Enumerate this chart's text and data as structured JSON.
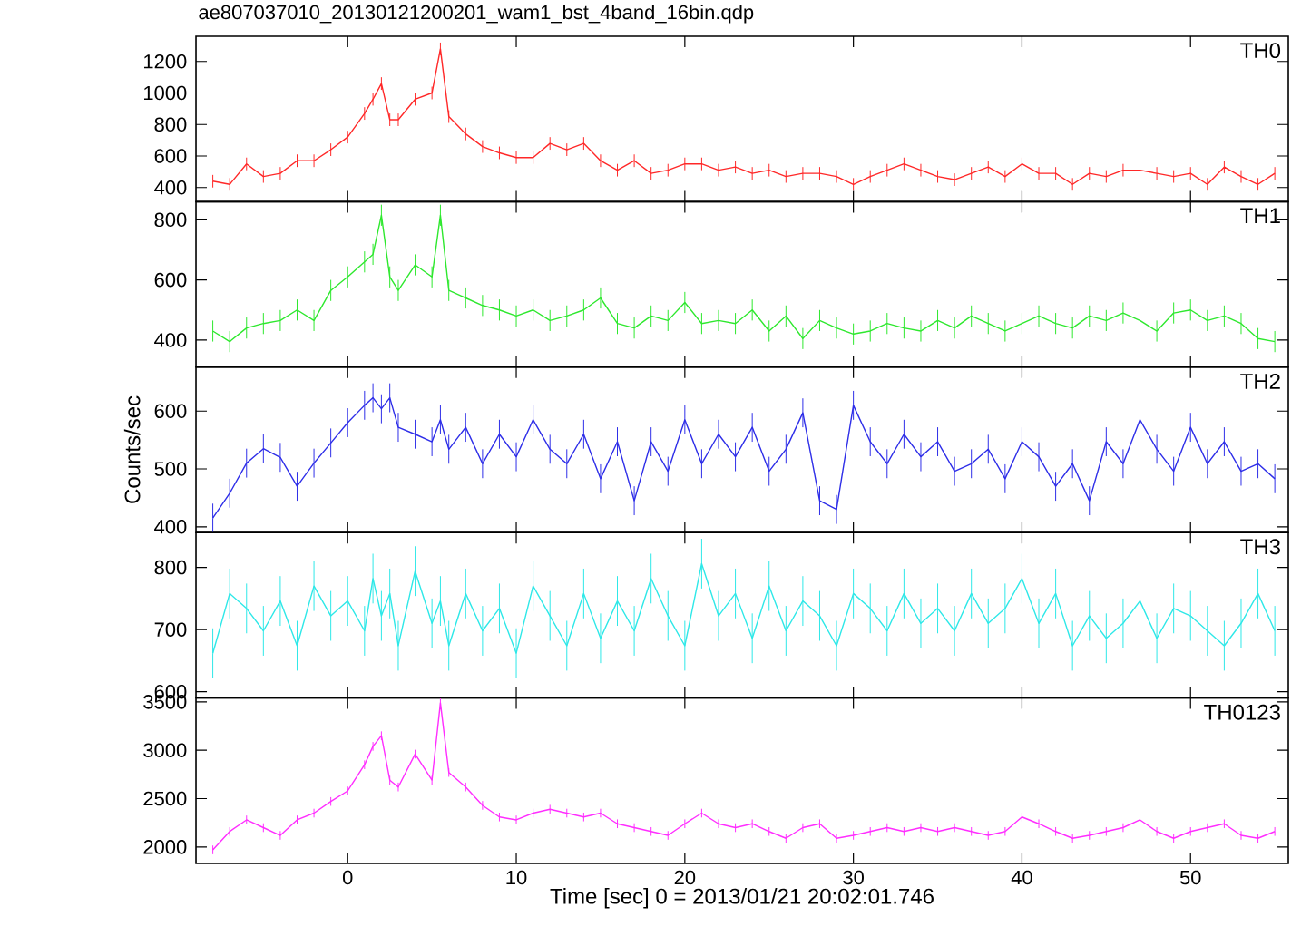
{
  "chart_data": [
    {
      "type": "line",
      "title": "ae807037010_20130121200201_wam1_bst_4band_16bin.qdp",
      "x": [
        -8,
        -7,
        -6,
        -5,
        -4,
        -3,
        -2,
        -1,
        0,
        1,
        1.5,
        2,
        2.5,
        3,
        4,
        5,
        5.5,
        6,
        7,
        8,
        9,
        10,
        11,
        12,
        13,
        14,
        15,
        16,
        17,
        18,
        19,
        20,
        21,
        22,
        23,
        24,
        25,
        26,
        27,
        28,
        29,
        30,
        31,
        32,
        33,
        34,
        35,
        36,
        37,
        38,
        39,
        40,
        41,
        42,
        43,
        44,
        45,
        46,
        47,
        48,
        49,
        50,
        51,
        52,
        53,
        54,
        55
      ],
      "xlim": [
        -9,
        55.8
      ],
      "xticks": [
        0,
        10,
        20,
        30,
        40,
        50
      ],
      "ylim": [
        310,
        1360
      ],
      "yticks": [
        400,
        600,
        800,
        1000,
        1200
      ],
      "tick_labels": "y",
      "series": [
        {
          "name": "TH0",
          "color": "#ff2828",
          "values": [
            440,
            420,
            550,
            470,
            490,
            570,
            570,
            640,
            720,
            870,
            960,
            1060,
            830,
            830,
            960,
            1000,
            1280,
            850,
            740,
            660,
            620,
            590,
            590,
            680,
            640,
            680,
            570,
            510,
            570,
            490,
            510,
            550,
            550,
            510,
            530,
            490,
            510,
            470,
            490,
            490,
            470,
            420,
            470,
            510,
            550,
            510,
            470,
            450,
            490,
            530,
            470,
            550,
            490,
            490,
            420,
            490,
            470,
            510,
            510,
            490,
            470,
            490,
            420,
            530,
            470,
            420,
            490
          ],
          "errors": [
            40,
            40,
            40,
            40,
            40,
            40,
            40,
            40,
            40,
            40,
            40,
            40,
            40,
            40,
            40,
            40,
            40,
            40,
            40,
            40,
            40,
            40,
            40,
            40,
            40,
            40,
            40,
            40,
            40,
            40,
            40,
            40,
            40,
            40,
            40,
            40,
            40,
            40,
            40,
            40,
            40,
            40,
            40,
            40,
            40,
            40,
            40,
            40,
            40,
            40,
            40,
            40,
            40,
            40,
            40,
            40,
            40,
            40,
            40,
            40,
            40,
            40,
            40,
            40,
            40,
            40,
            40
          ]
        }
      ]
    },
    {
      "type": "line",
      "x": [
        -8,
        -7,
        -6,
        -5,
        -4,
        -3,
        -2,
        -1,
        0,
        1,
        1.5,
        2,
        2.5,
        3,
        4,
        5,
        5.5,
        6,
        7,
        8,
        9,
        10,
        11,
        12,
        13,
        14,
        15,
        16,
        17,
        18,
        19,
        20,
        21,
        22,
        23,
        24,
        25,
        26,
        27,
        28,
        29,
        30,
        31,
        32,
        33,
        34,
        35,
        36,
        37,
        38,
        39,
        40,
        41,
        42,
        43,
        44,
        45,
        46,
        47,
        48,
        49,
        50,
        51,
        52,
        53,
        54,
        55
      ],
      "xlim": [
        -9,
        55.8
      ],
      "xticks": [
        0,
        10,
        20,
        30,
        40,
        50
      ],
      "ylim": [
        310,
        860
      ],
      "yticks": [
        400,
        600,
        800
      ],
      "tick_labels": "y",
      "series": [
        {
          "name": "TH1",
          "color": "#2ee82e",
          "values": [
            430,
            395,
            440,
            455,
            465,
            500,
            465,
            565,
            610,
            660,
            685,
            815,
            610,
            565,
            650,
            610,
            815,
            565,
            540,
            515,
            500,
            480,
            500,
            465,
            480,
            500,
            540,
            455,
            440,
            480,
            465,
            525,
            455,
            465,
            455,
            500,
            430,
            480,
            405,
            465,
            440,
            420,
            430,
            455,
            440,
            430,
            465,
            440,
            480,
            455,
            430,
            455,
            480,
            455,
            440,
            480,
            465,
            490,
            465,
            430,
            490,
            500,
            465,
            480,
            455,
            405,
            395
          ],
          "errors": [
            35,
            35,
            35,
            35,
            35,
            35,
            35,
            35,
            35,
            35,
            35,
            35,
            35,
            35,
            35,
            35,
            35,
            35,
            35,
            35,
            35,
            35,
            35,
            35,
            35,
            35,
            35,
            35,
            35,
            35,
            35,
            35,
            35,
            35,
            35,
            35,
            35,
            35,
            35,
            35,
            35,
            35,
            35,
            35,
            35,
            35,
            35,
            35,
            35,
            35,
            35,
            35,
            35,
            35,
            35,
            35,
            35,
            35,
            35,
            35,
            35,
            35,
            35,
            35,
            35,
            35,
            35
          ]
        }
      ]
    },
    {
      "type": "line",
      "ylabel": "Counts/sec",
      "x": [
        -8,
        -7,
        -6,
        -5,
        -4,
        -3,
        -2,
        -1,
        0,
        1,
        1.5,
        2,
        2.5,
        3,
        4,
        5,
        5.5,
        6,
        7,
        8,
        9,
        10,
        11,
        12,
        13,
        14,
        15,
        16,
        17,
        18,
        19,
        20,
        21,
        22,
        23,
        24,
        25,
        26,
        27,
        28,
        29,
        30,
        31,
        32,
        33,
        34,
        35,
        36,
        37,
        38,
        39,
        40,
        41,
        42,
        43,
        44,
        45,
        46,
        47,
        48,
        49,
        50,
        51,
        52,
        53,
        54,
        55
      ],
      "xlim": [
        -9,
        55.8
      ],
      "xticks": [
        0,
        10,
        20,
        30,
        40,
        50
      ],
      "ylim": [
        390,
        676
      ],
      "yticks": [
        400,
        500,
        600
      ],
      "tick_labels": "y",
      "series": [
        {
          "name": "TH2",
          "color": "#2e2ee8",
          "values": [
            415,
            458,
            510,
            535,
            520,
            470,
            510,
            545,
            580,
            610,
            623,
            604,
            623,
            572,
            560,
            547,
            585,
            534,
            572,
            509,
            560,
            521,
            585,
            534,
            509,
            560,
            483,
            547,
            445,
            547,
            496,
            585,
            509,
            560,
            521,
            572,
            496,
            534,
            597,
            445,
            430,
            610,
            547,
            509,
            560,
            521,
            547,
            496,
            509,
            534,
            483,
            547,
            521,
            470,
            509,
            445,
            547,
            509,
            585,
            534,
            496,
            572,
            509,
            547,
            496,
            509,
            483
          ],
          "errors": [
            25,
            25,
            25,
            25,
            25,
            25,
            25,
            25,
            25,
            25,
            25,
            25,
            25,
            25,
            25,
            25,
            25,
            25,
            25,
            25,
            25,
            25,
            25,
            25,
            25,
            25,
            25,
            25,
            25,
            25,
            25,
            25,
            25,
            25,
            25,
            25,
            25,
            25,
            25,
            25,
            25,
            25,
            25,
            25,
            25,
            25,
            25,
            25,
            25,
            25,
            25,
            25,
            25,
            25,
            25,
            25,
            25,
            25,
            25,
            25,
            25,
            25,
            25,
            25,
            25,
            25,
            25
          ]
        }
      ]
    },
    {
      "type": "line",
      "x": [
        -8,
        -7,
        -6,
        -5,
        -4,
        -3,
        -2,
        -1,
        0,
        1,
        1.5,
        2,
        2.5,
        3,
        4,
        5,
        5.5,
        6,
        7,
        8,
        9,
        10,
        11,
        12,
        13,
        14,
        15,
        16,
        17,
        18,
        19,
        20,
        21,
        22,
        23,
        24,
        25,
        26,
        27,
        28,
        29,
        30,
        31,
        32,
        33,
        34,
        35,
        36,
        37,
        38,
        39,
        40,
        41,
        42,
        43,
        44,
        45,
        46,
        47,
        48,
        49,
        50,
        51,
        52,
        53,
        54,
        55
      ],
      "xlim": [
        -9,
        55.8
      ],
      "xticks": [
        0,
        10,
        20,
        30,
        40,
        50
      ],
      "ylim": [
        590,
        856
      ],
      "yticks": [
        600,
        700,
        800
      ],
      "tick_labels": "y",
      "series": [
        {
          "name": "TH3",
          "color": "#2ee8e8",
          "values": [
            662,
            758,
            734,
            698,
            746,
            674,
            770,
            722,
            746,
            698,
            782,
            722,
            758,
            674,
            794,
            710,
            746,
            674,
            758,
            698,
            734,
            662,
            770,
            722,
            674,
            758,
            686,
            746,
            698,
            782,
            722,
            674,
            806,
            722,
            758,
            686,
            770,
            698,
            746,
            722,
            674,
            758,
            734,
            698,
            758,
            710,
            734,
            698,
            758,
            710,
            734,
            782,
            710,
            758,
            674,
            722,
            686,
            710,
            746,
            686,
            734,
            722,
            698,
            674,
            710,
            758,
            698
          ],
          "errors": [
            40,
            40,
            40,
            40,
            40,
            40,
            40,
            40,
            40,
            40,
            40,
            40,
            40,
            40,
            40,
            40,
            40,
            40,
            40,
            40,
            40,
            40,
            40,
            40,
            40,
            40,
            40,
            40,
            40,
            40,
            40,
            40,
            40,
            40,
            40,
            40,
            40,
            40,
            40,
            40,
            40,
            40,
            40,
            40,
            40,
            40,
            40,
            40,
            40,
            40,
            40,
            40,
            40,
            40,
            40,
            40,
            40,
            40,
            40,
            40,
            40,
            40,
            40,
            40,
            40,
            40,
            40
          ]
        }
      ]
    },
    {
      "type": "line",
      "xlabel": "Time [sec] 0 = 2013/01/21 20:02:01.746",
      "x": [
        -8,
        -7,
        -6,
        -5,
        -4,
        -3,
        -2,
        -1,
        0,
        1,
        1.5,
        2,
        2.5,
        3,
        4,
        5,
        5.5,
        6,
        7,
        8,
        9,
        10,
        11,
        12,
        13,
        14,
        15,
        16,
        17,
        18,
        19,
        20,
        21,
        22,
        23,
        24,
        25,
        26,
        27,
        28,
        29,
        30,
        31,
        32,
        33,
        34,
        35,
        36,
        37,
        38,
        39,
        40,
        41,
        42,
        43,
        44,
        45,
        46,
        47,
        48,
        49,
        50,
        51,
        52,
        53,
        54,
        55
      ],
      "xlim": [
        -9,
        55.8
      ],
      "xticks": [
        0,
        10,
        20,
        30,
        40,
        50
      ],
      "ylim": [
        1830,
        3540
      ],
      "yticks": [
        2000,
        2500,
        3000,
        3500
      ],
      "series": [
        {
          "name": "TH0123",
          "color": "#ff2eff",
          "values": [
            1970,
            2160,
            2280,
            2200,
            2120,
            2280,
            2350,
            2470,
            2580,
            2850,
            3040,
            3150,
            2690,
            2620,
            2960,
            2690,
            3490,
            2770,
            2620,
            2430,
            2310,
            2280,
            2350,
            2390,
            2350,
            2310,
            2350,
            2240,
            2200,
            2160,
            2120,
            2240,
            2350,
            2240,
            2200,
            2240,
            2160,
            2090,
            2200,
            2240,
            2090,
            2120,
            2160,
            2200,
            2160,
            2200,
            2160,
            2200,
            2160,
            2120,
            2160,
            2310,
            2240,
            2160,
            2090,
            2120,
            2160,
            2200,
            2280,
            2160,
            2090,
            2160,
            2200,
            2240,
            2120,
            2090,
            2160
          ],
          "errors": [
            45,
            45,
            45,
            45,
            45,
            45,
            45,
            45,
            45,
            45,
            45,
            45,
            45,
            45,
            45,
            45,
            45,
            45,
            45,
            45,
            45,
            45,
            45,
            45,
            45,
            45,
            45,
            45,
            45,
            45,
            45,
            45,
            45,
            45,
            45,
            45,
            45,
            45,
            45,
            45,
            45,
            45,
            45,
            45,
            45,
            45,
            45,
            45,
            45,
            45,
            45,
            45,
            45,
            45,
            45,
            45,
            45,
            45,
            45,
            45,
            45,
            45,
            45,
            45,
            45,
            45,
            45
          ]
        }
      ]
    }
  ]
}
